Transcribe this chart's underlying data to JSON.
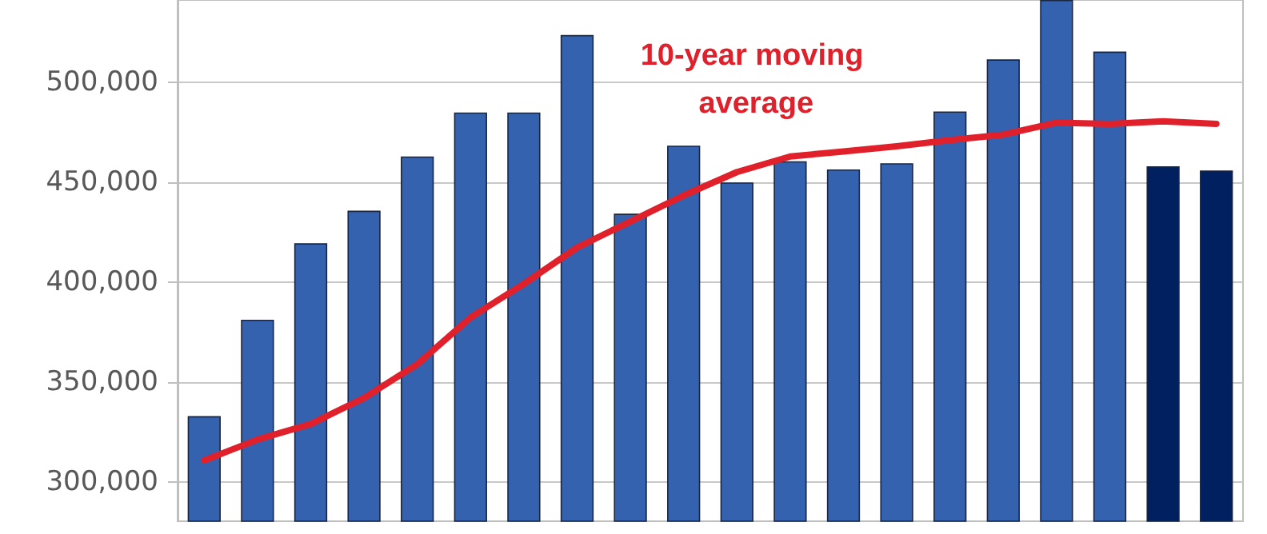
{
  "chart_data": {
    "type": "bar",
    "categories": [
      null,
      null,
      null,
      null,
      null,
      null,
      null,
      null,
      null,
      null,
      null,
      null,
      null,
      null,
      null,
      null,
      null,
      null,
      null,
      null
    ],
    "series": [
      {
        "colors": [
          "#3462ae",
          "#3462ae",
          "#3462ae",
          "#3462ae",
          "#3462ae",
          "#3462ae",
          "#3462ae",
          "#3462ae",
          "#3462ae",
          "#3462ae",
          "#3462ae",
          "#3462ae",
          "#3462ae",
          "#3462ae",
          "#3462ae",
          "#3462ae",
          "#3462ae",
          "#3462ae",
          "#002060",
          "#002060"
        ],
        "values": [
          333000,
          381200,
          419400,
          435700,
          462800,
          484800,
          484800,
          523500,
          434200,
          468200,
          449800,
          460400,
          456300,
          459400,
          485300,
          511300,
          541000,
          515200,
          457900,
          455800
        ]
      },
      {
        "type": "line",
        "name": "10-year moving average",
        "color": "#e0202a",
        "values": [
          310900,
          321300,
          329100,
          342100,
          359000,
          382300,
          399100,
          417300,
          430300,
          443300,
          455000,
          462800,
          465300,
          467900,
          471000,
          473700,
          479700,
          479100,
          480400,
          479100
        ]
      }
    ],
    "ylim": [
      280500,
      541000
    ],
    "yticks": [
      {
        "value": 300000,
        "label": "300,000"
      },
      {
        "value": 350000,
        "label": "350,000"
      },
      {
        "value": 400000,
        "label": "400,000"
      },
      {
        "value": 450000,
        "label": "450,000"
      },
      {
        "value": 500000,
        "label": "500,000"
      }
    ],
    "grid": "y",
    "legend": false,
    "marker": "none",
    "line_style": "solid"
  }
}
